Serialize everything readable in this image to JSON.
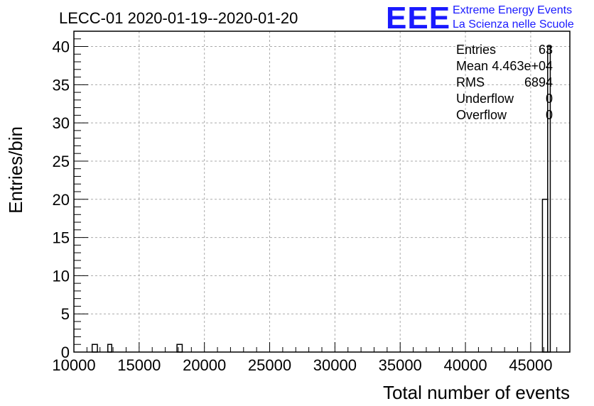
{
  "chart_data": {
    "type": "bar",
    "title": "LECC-01 2020-01-19--2020-01-20",
    "xlabel": "Total number of events",
    "ylabel": "Entries/bin",
    "xlim": [
      10000,
      48000
    ],
    "ylim": [
      0,
      42
    ],
    "grid": true,
    "x_ticks": [
      10000,
      15000,
      20000,
      25000,
      30000,
      35000,
      40000,
      45000
    ],
    "y_ticks": [
      0,
      5,
      10,
      15,
      20,
      25,
      30,
      35,
      40
    ],
    "bins": [
      {
        "x0": 11400,
        "x1": 11800,
        "y": 1
      },
      {
        "x0": 12600,
        "x1": 12900,
        "y": 1
      },
      {
        "x0": 17900,
        "x1": 18300,
        "y": 1
      },
      {
        "x0": 45900,
        "x1": 46300,
        "y": 20
      },
      {
        "x0": 46300,
        "x1": 46500,
        "y": 40
      }
    ],
    "stats": [
      {
        "label": "Entries",
        "value": "63"
      },
      {
        "label": "Mean",
        "value": "4.463e+04"
      },
      {
        "label": "RMS",
        "value": "6894"
      },
      {
        "label": "Underflow",
        "value": "0"
      },
      {
        "label": "Overflow",
        "value": "0"
      }
    ]
  },
  "logo": {
    "mark": "EEE",
    "line1": "Extreme Energy Events",
    "line2": "La Scienza nelle Scuole",
    "color": "#1a1aff"
  }
}
